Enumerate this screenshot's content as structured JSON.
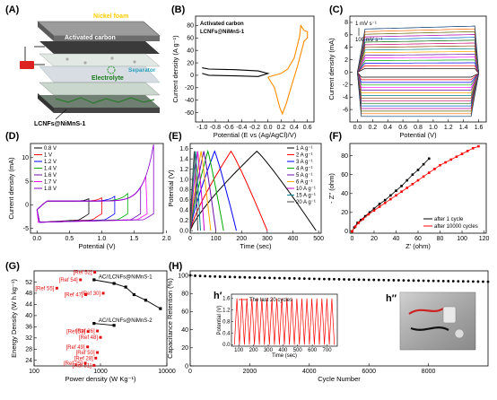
{
  "panels": {
    "A": "(A)",
    "B": "(B)",
    "C": "(C)",
    "D": "(D)",
    "E": "(E)",
    "F": "(F)",
    "G": "(G)",
    "H": "(H)"
  },
  "schematic": {
    "nickel_foam": "Nickel foam",
    "activated_carbon": "Activated carbon",
    "electrolyte": "Electrolyte",
    "separator": "Separator",
    "electrode": "LCNFs@NiMnS-1"
  },
  "inset_labels": {
    "h1": "h′",
    "h2": "h″"
  },
  "chart_data": [
    {
      "id": "B",
      "type": "line",
      "xlabel": "Potential (E vs (Ag/AgCl)/V)",
      "ylabel": "Current density (A g⁻¹)",
      "xlim": [
        -1.1,
        0.7
      ],
      "ylim": [
        -75,
        95
      ],
      "xticks": [
        "-1.0",
        "-0.8",
        "-0.6",
        "-0.4",
        "-0.2",
        "0.0",
        "0.2",
        "0.4",
        "0.6"
      ],
      "yticks": [
        "-60",
        "-40",
        "-20",
        "0",
        "20",
        "40",
        "60",
        "80"
      ],
      "series": [
        {
          "name": "Activated carbon",
          "color": "#000000",
          "x": [
            -1.0,
            -0.9,
            -0.5,
            -0.15,
            0.0,
            -0.15,
            -0.5,
            -0.9,
            -1.0
          ],
          "y": [
            12,
            10,
            9,
            7,
            3,
            -2,
            -1,
            0,
            3
          ]
        },
        {
          "name": "LCNFs@NiMnS-1",
          "color": "#ff8c00",
          "x": [
            0.0,
            0.1,
            0.2,
            0.3,
            0.4,
            0.48,
            0.5,
            0.55,
            0.6,
            0.6,
            0.55,
            0.45,
            0.35,
            0.28,
            0.22,
            0.18,
            0.1,
            0.0
          ],
          "y": [
            -3,
            0,
            3,
            10,
            28,
            62,
            80,
            72,
            70,
            60,
            55,
            15,
            -20,
            -45,
            -62,
            -52,
            -20,
            -3
          ]
        }
      ]
    },
    {
      "id": "C",
      "type": "line",
      "xlabel": "Potential (V)",
      "ylabel": "Current density (mA)",
      "xlim": [
        -0.1,
        1.7
      ],
      "ylim": [
        -8,
        9
      ],
      "xticks": [
        "0.0",
        "0.2",
        "0.4",
        "0.6",
        "0.8",
        "1.0",
        "1.2",
        "1.4",
        "1.6"
      ],
      "yticks": [
        "-6",
        "-4",
        "-2",
        "0",
        "2",
        "4",
        "6",
        "8"
      ],
      "annotations": [
        "1 mV s⁻¹",
        "100 mV s⁻¹"
      ],
      "n_curves": 16
    },
    {
      "id": "D",
      "type": "line",
      "xlabel": "Potential (V)",
      "ylabel": "Current density (mA)",
      "xlim": [
        -0.1,
        1.95
      ],
      "ylim": [
        -6,
        13
      ],
      "xticks": [
        "0.0",
        "0.5",
        "1.0",
        "1.5",
        "2.0"
      ],
      "yticks": [
        "-5",
        "0",
        "5",
        "10"
      ],
      "series": [
        {
          "name": "0.8 V",
          "color": "#000000",
          "vmax": 0.8,
          "tail": 0.5
        },
        {
          "name": "1 V",
          "color": "#ff0000",
          "vmax": 1.0,
          "tail": 0.7
        },
        {
          "name": "1.2 V",
          "color": "#0000ff",
          "vmax": 1.2,
          "tail": 1.0
        },
        {
          "name": "1.4 V",
          "color": "#00aa00",
          "vmax": 1.4,
          "tail": 1.6
        },
        {
          "name": "1.6 V",
          "color": "#6a0dad",
          "vmax": 1.6,
          "tail": 3.0
        },
        {
          "name": "1.7 V",
          "color": "#ff00ff",
          "vmax": 1.7,
          "tail": 6.0
        },
        {
          "name": "1.8 V",
          "color": "#8800cc",
          "vmax": 1.8,
          "tail": 12.0
        }
      ]
    },
    {
      "id": "E",
      "type": "line",
      "xlabel": "Time (sec)",
      "ylabel": "Potential (V)",
      "xlim": [
        0,
        510
      ],
      "ylim": [
        -0.05,
        1.7
      ],
      "xticks": [
        "0",
        "100",
        "200",
        "300",
        "400",
        "500"
      ],
      "yticks": [
        "0.0",
        "0.2",
        "0.4",
        "0.6",
        "0.8",
        "1.0",
        "1.2",
        "1.4",
        "1.6"
      ],
      "series": [
        {
          "name": "1 A g⁻¹",
          "color": "#000000",
          "t_end": 490
        },
        {
          "name": "2 A g⁻¹",
          "color": "#ff0000",
          "t_end": 300
        },
        {
          "name": "3 A g⁻¹",
          "color": "#0000ff",
          "t_end": 180
        },
        {
          "name": "4 A g⁻¹",
          "color": "#00aa00",
          "t_end": 130
        },
        {
          "name": "5 A g⁻¹",
          "color": "#6a0dad",
          "t_end": 100
        },
        {
          "name": "6 A g⁻¹",
          "color": "#ffaa00",
          "t_end": 80
        },
        {
          "name": "10 A g⁻¹",
          "color": "#cc00cc",
          "t_end": 55
        },
        {
          "name": "15 A g⁻¹",
          "color": "#008888",
          "t_end": 40
        },
        {
          "name": "20 A g⁻¹",
          "color": "#444444",
          "t_end": 30
        }
      ]
    },
    {
      "id": "F",
      "type": "scatter",
      "xlabel": "Z' (ohm)",
      "ylabel": "- Z'' (ohm)",
      "xlim": [
        -2,
        122
      ],
      "ylim": [
        -2,
        93
      ],
      "xticks": [
        "0",
        "20",
        "40",
        "60",
        "80",
        "100",
        "120"
      ],
      "yticks": [
        "0",
        "20",
        "40",
        "60",
        "80"
      ],
      "series": [
        {
          "name": "after 1 cycle",
          "color": "#000000",
          "x": [
            0,
            2,
            5,
            8,
            12,
            16,
            20,
            25,
            30,
            35,
            40,
            45,
            50,
            55,
            60,
            65,
            70
          ],
          "y": [
            0,
            4,
            9,
            12,
            16,
            20,
            24,
            29,
            33,
            38,
            43,
            48,
            54,
            60,
            65,
            71,
            77
          ]
        },
        {
          "name": "after 10000 cycles",
          "color": "#ff0000",
          "x": [
            0,
            3,
            6,
            10,
            15,
            20,
            25,
            30,
            35,
            40,
            45,
            50,
            55,
            60,
            65,
            70,
            75,
            80,
            85,
            90,
            95,
            100,
            105,
            110,
            115
          ],
          "y": [
            0,
            5,
            9,
            13,
            18,
            22,
            26,
            30,
            34,
            38,
            42,
            46,
            50,
            54,
            58,
            62,
            66,
            70,
            73,
            76,
            79,
            82,
            85,
            88,
            90
          ]
        }
      ]
    },
    {
      "id": "G",
      "type": "scatter",
      "xlabel": "Power density (W Kg⁻¹)",
      "ylabel": "Energy Density (W h kg⁻¹)",
      "xscale": "log",
      "xlim": [
        100,
        10000
      ],
      "ylim": [
        22,
        56
      ],
      "xticks": [
        "100",
        "1000",
        "10000"
      ],
      "yticks": [
        "24",
        "28",
        "32",
        "36",
        "40",
        "44",
        "48",
        "52"
      ],
      "series": [
        {
          "name": "AC//LCNFs@NiMnS-1",
          "color": "#000000",
          "x": [
            800,
            1600,
            2400,
            3200,
            4800,
            8000
          ],
          "y": [
            52.8,
            51.5,
            50.2,
            47.5,
            45.5,
            42.5
          ]
        },
        {
          "name": "AC//LCNFs@NiMnS-2",
          "color": "#000000",
          "x": [
            800,
            1600
          ],
          "y": [
            37.2,
            36.5
          ]
        }
      ],
      "references": [
        {
          "label": "[Ref 52]",
          "x": 820,
          "y": 55.5
        },
        {
          "label": "[Ref 54]",
          "x": 500,
          "y": 52.8
        },
        {
          "label": "[Ref 55]",
          "x": 220,
          "y": 49.8
        },
        {
          "label": "[Ref 47]",
          "x": 600,
          "y": 47.5
        },
        {
          "label": "[Ref 30]",
          "x": 1100,
          "y": 48.0
        },
        {
          "label": "[Ref 26]",
          "x": 900,
          "y": 34.5
        },
        {
          "label": "[Ref 53]",
          "x": 650,
          "y": 34.3
        },
        {
          "label": "[Ref 48]",
          "x": 1000,
          "y": 32.2
        },
        {
          "label": "[Ref 49]",
          "x": 640,
          "y": 28.8
        },
        {
          "label": "[Ref 50]",
          "x": 900,
          "y": 26.8
        },
        {
          "label": "[Ref 28]",
          "x": 850,
          "y": 24.8
        },
        {
          "label": "[Ref 25]",
          "x": 590,
          "y": 23.0
        },
        {
          "label": "[Ref 51]",
          "x": 800,
          "y": 22.2
        }
      ]
    },
    {
      "id": "H",
      "type": "scatter",
      "xlabel": "Cycle Number",
      "ylabel": "Capacitance Retention (%)",
      "xlim": [
        0,
        10000
      ],
      "ylim": [
        0,
        105
      ],
      "xticks": [
        "0",
        "2000",
        "4000",
        "6000",
        "8000"
      ],
      "yticks": [
        "0",
        "20",
        "40",
        "60",
        "80",
        "100"
      ],
      "series": [
        {
          "name": "retention",
          "color": "#000000",
          "start": 100,
          "end": 93
        }
      ],
      "inset": {
        "title": "The last 20 cycles",
        "xlabel": "Time (sec)",
        "ylabel": "Potential (V)",
        "xlim": [
          50,
          770
        ],
        "ylim": [
          -0.05,
          1.75
        ],
        "xticks": [
          "100",
          "200",
          "300",
          "400",
          "500",
          "600",
          "700"
        ],
        "yticks": [
          "0.0",
          "0.4",
          "0.8",
          "1.2",
          "1.6"
        ],
        "cycles": 20,
        "color": "#ff0000"
      }
    }
  ]
}
